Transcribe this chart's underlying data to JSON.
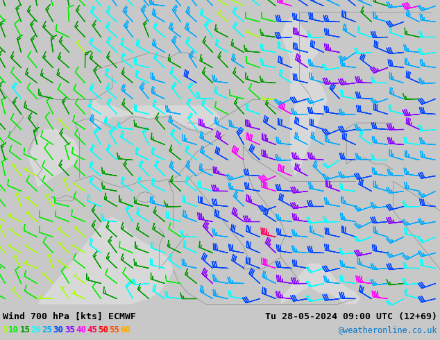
{
  "title_left": "Wind 700 hPa [kts] ECMWF",
  "title_right": "Tu 28-05-2024 09:00 UTC (12+69)",
  "credit": "@weatheronline.co.uk",
  "legend_values": [
    5,
    10,
    15,
    20,
    25,
    30,
    35,
    40,
    45,
    50,
    55,
    60
  ],
  "legend_colors": [
    "#aaff00",
    "#00ee00",
    "#009900",
    "#00ffff",
    "#00aaff",
    "#0044ff",
    "#8800ff",
    "#ff00ff",
    "#ff0055",
    "#ff0000",
    "#ff5500",
    "#ffaa00"
  ],
  "bg_color": "#c8c8c8",
  "land_color": "#bbff88",
  "sea_color": "#d8d8d8",
  "border_color": "#888888",
  "figsize": [
    6.34,
    4.9
  ],
  "dpi": 100,
  "bottom_bar_color": "#ffffff",
  "font_color": "#000000",
  "lon_min": 18.0,
  "lon_max": 65.0,
  "lat_min": 26.0,
  "lat_max": 52.0
}
